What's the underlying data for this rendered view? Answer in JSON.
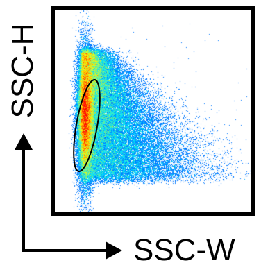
{
  "chart_data": {
    "type": "scatter",
    "title": "",
    "xlabel": "SSC-W",
    "ylabel": "SSC-H",
    "grid": false,
    "legend": "none",
    "color_scale": [
      "#0000ff",
      "#00e5ff",
      "#ffff00",
      "#ff0000"
    ],
    "point_color": "#2244ff",
    "gate": {
      "shape": "ellipse",
      "stroke": "#000000"
    }
  }
}
